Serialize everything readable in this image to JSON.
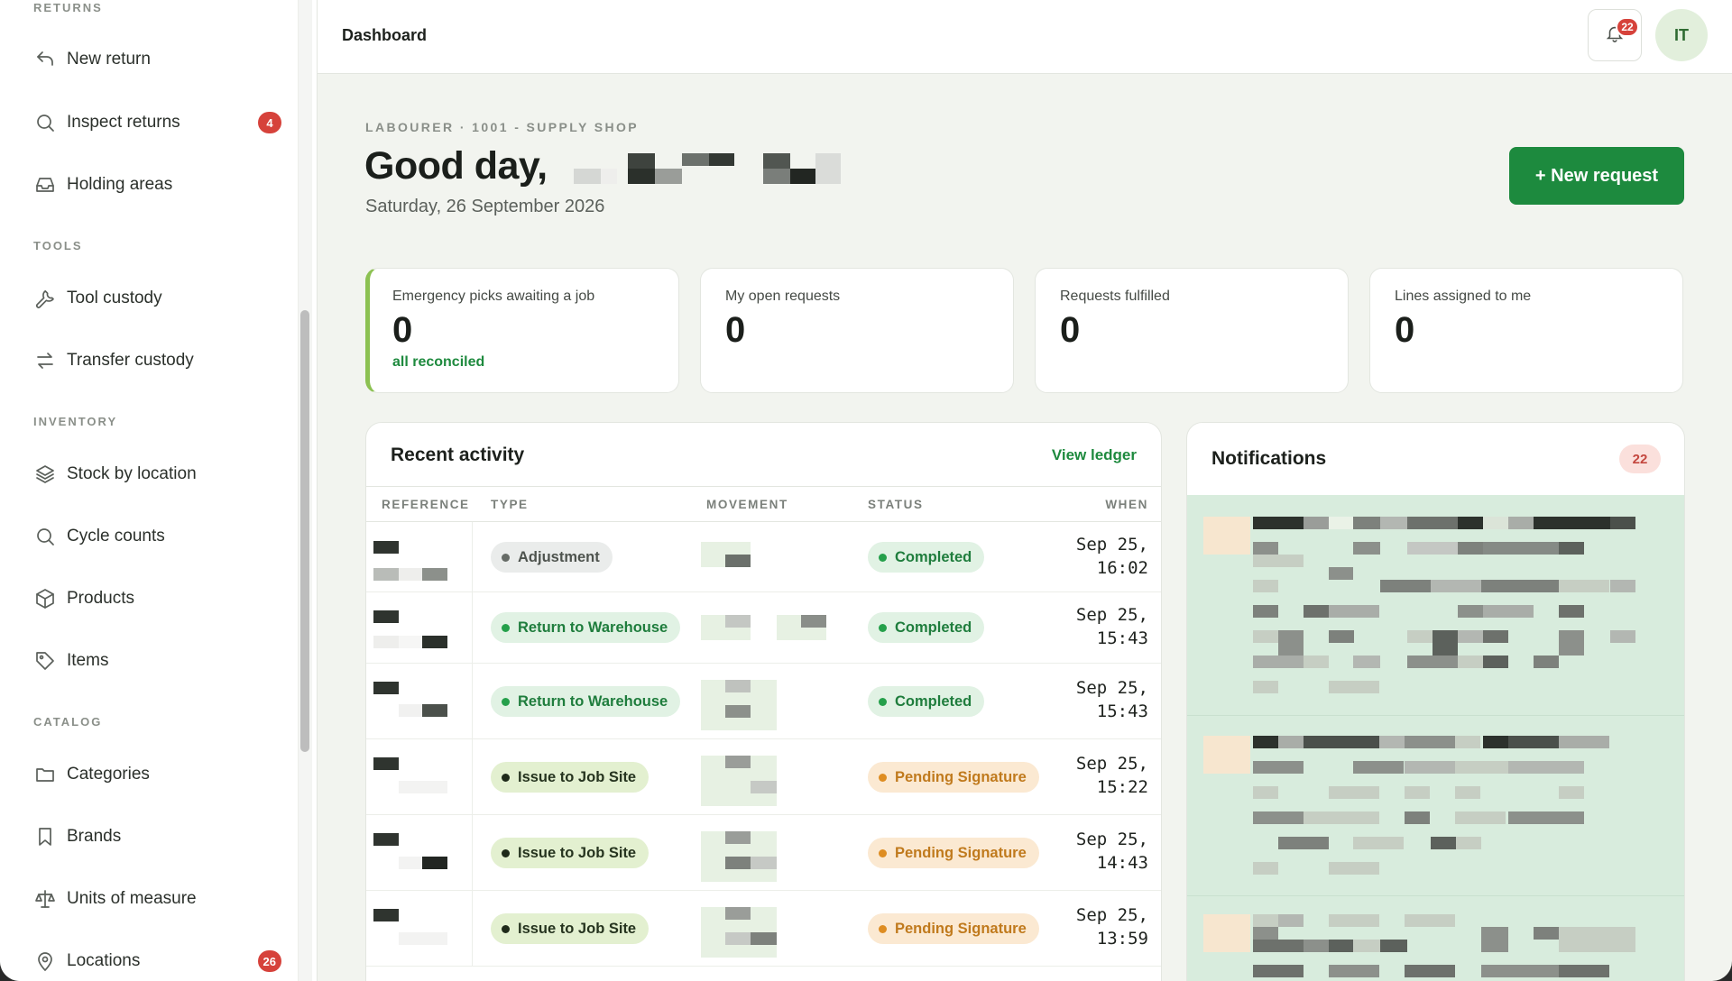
{
  "sidebar": {
    "sections": {
      "returns": "RETURNS",
      "tools": "TOOLS",
      "inventory": "INVENTORY",
      "catalog": "CATALOG"
    },
    "items": [
      {
        "label": "New return",
        "icon": "undo-icon"
      },
      {
        "label": "Inspect returns",
        "icon": "search-icon",
        "badge": "4"
      },
      {
        "label": "Holding areas",
        "icon": "inbox-icon"
      },
      {
        "label": "Tool custody",
        "icon": "wrench-icon"
      },
      {
        "label": "Transfer custody",
        "icon": "transfer-arrows-icon"
      },
      {
        "label": "Stock by location",
        "icon": "layers-icon"
      },
      {
        "label": "Cycle counts",
        "icon": "search-icon"
      },
      {
        "label": "Products",
        "icon": "box-icon"
      },
      {
        "label": "Items",
        "icon": "tag-icon"
      },
      {
        "label": "Categories",
        "icon": "folder-icon"
      },
      {
        "label": "Brands",
        "icon": "bookmark-icon"
      },
      {
        "label": "Units of measure",
        "icon": "scale-icon"
      },
      {
        "label": "Locations",
        "icon": "map-pin-icon",
        "badge": "26"
      }
    ]
  },
  "header": {
    "title": "Dashboard",
    "notifications_count": "22",
    "avatar_initials": "IT"
  },
  "main": {
    "eyebrow": "LABOURER · 1001 - SUPPLY SHOP",
    "greeting": "Good day,",
    "date": "Saturday, 26 September 2026",
    "new_request_label": "+ New request",
    "stats": [
      {
        "title": "Emergency picks awaiting a job",
        "value": "0",
        "sub": "all reconciled"
      },
      {
        "title": "My open requests",
        "value": "0"
      },
      {
        "title": "Requests fulfilled",
        "value": "0"
      },
      {
        "title": "Lines assigned to me",
        "value": "0"
      }
    ]
  },
  "activity": {
    "title": "Recent activity",
    "view_ledger": "View ledger",
    "columns": {
      "reference": "REFERENCE",
      "type": "TYPE",
      "movement": "MOVEMENT",
      "status": "STATUS",
      "when": "WHEN"
    },
    "rows": [
      {
        "type": "Adjustment",
        "type_style": "grey",
        "status": "Completed",
        "status_style": "green",
        "when_date": "Sep 25,",
        "when_time": "16:02"
      },
      {
        "type": "Return to Warehouse",
        "type_style": "green",
        "status": "Completed",
        "status_style": "green",
        "when_date": "Sep 25,",
        "when_time": "15:43"
      },
      {
        "type": "Return to Warehouse",
        "type_style": "green",
        "status": "Completed",
        "status_style": "green",
        "when_date": "Sep 25,",
        "when_time": "15:43"
      },
      {
        "type": "Issue to Job Site",
        "type_style": "olive",
        "status": "Pending Signature",
        "status_style": "amber",
        "when_date": "Sep 25,",
        "when_time": "15:22"
      },
      {
        "type": "Issue to Job Site",
        "type_style": "olive",
        "status": "Pending Signature",
        "status_style": "amber",
        "when_date": "Sep 25,",
        "when_time": "14:43"
      },
      {
        "type": "Issue to Job Site",
        "type_style": "olive",
        "status": "Pending Signature",
        "status_style": "amber",
        "when_date": "Sep 25,",
        "when_time": "13:59"
      }
    ]
  },
  "notifications": {
    "title": "Notifications",
    "count": "22"
  }
}
